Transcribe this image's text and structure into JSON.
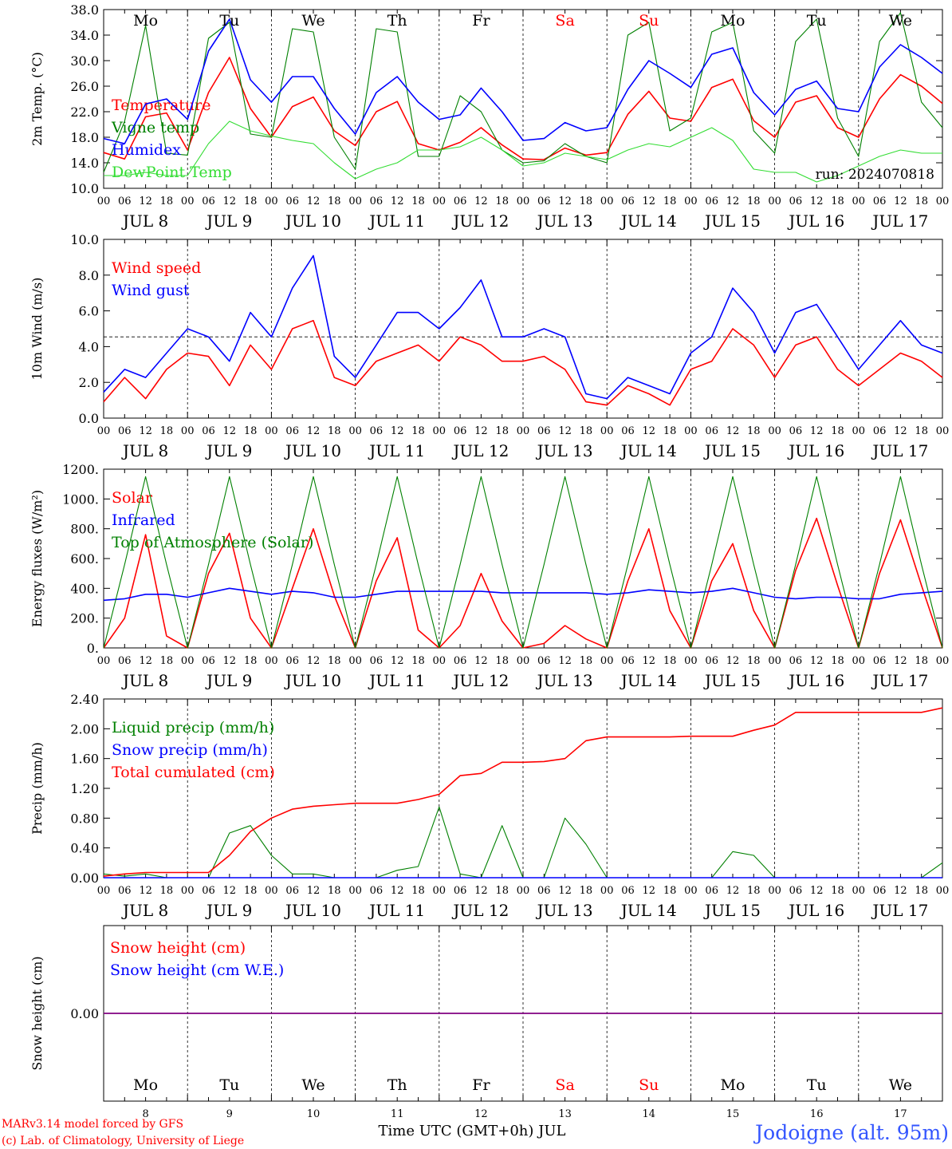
{
  "run_label": "run: 2024070818",
  "footer": {
    "credit_line1": "MARv3.14 model forced by GFS",
    "credit_line2": "(c) Lab. of Climatology, University of Liege",
    "xaxis_title": "Time UTC (GMT+0h) JUL",
    "location": "Jodoigne (alt. 95m)"
  },
  "days": [
    {
      "abbr": "Mo",
      "weekend": false,
      "date": "JUL  8",
      "num": "8"
    },
    {
      "abbr": "Tu",
      "weekend": false,
      "date": "JUL  9",
      "num": "9"
    },
    {
      "abbr": "We",
      "weekend": false,
      "date": "JUL 10",
      "num": "10"
    },
    {
      "abbr": "Th",
      "weekend": false,
      "date": "JUL 11",
      "num": "11"
    },
    {
      "abbr": "Fr",
      "weekend": false,
      "date": "JUL 12",
      "num": "12"
    },
    {
      "abbr": "Sa",
      "weekend": true,
      "date": "JUL 13",
      "num": "13"
    },
    {
      "abbr": "Su",
      "weekend": true,
      "date": "JUL 14",
      "num": "14"
    },
    {
      "abbr": "Mo",
      "weekend": false,
      "date": "JUL 15",
      "num": "15"
    },
    {
      "abbr": "Tu",
      "weekend": false,
      "date": "JUL 16",
      "num": "16"
    },
    {
      "abbr": "We",
      "weekend": false,
      "date": "JUL 17",
      "num": "17"
    }
  ],
  "hour_ticks": [
    "00",
    "06",
    "12",
    "18"
  ],
  "colors": {
    "red": "#ff0000",
    "green": "#008000",
    "light_green": "#33dd33",
    "blue": "#0000ff",
    "purple": "#800080",
    "location_blue": "#3355ff"
  },
  "chart_data": [
    {
      "type": "line",
      "title": "",
      "ylabel": "2m Temp. (°C)",
      "xlabel": "",
      "ylim": [
        10.0,
        38.0
      ],
      "yticks": [
        "10.0",
        "14.0",
        "18.0",
        "22.0",
        "26.0",
        "30.0",
        "34.0",
        "38.0"
      ],
      "x_unit": "hours from 00 UTC JUL 8",
      "x": [
        0,
        6,
        12,
        18,
        24,
        30,
        36,
        42,
        48,
        54,
        60,
        66,
        72,
        78,
        84,
        90,
        96,
        102,
        108,
        114,
        120,
        126,
        132,
        138,
        144,
        150,
        156,
        162,
        168,
        174,
        180,
        186,
        192,
        198,
        204,
        210,
        216,
        222,
        228,
        234,
        240
      ],
      "series": [
        {
          "name": "Temperature",
          "color": "red",
          "values": [
            15.6,
            14.6,
            21.2,
            21.8,
            16.0,
            25.0,
            30.5,
            22.5,
            18.0,
            22.8,
            24.3,
            19.0,
            16.7,
            22.0,
            23.6,
            17.0,
            16.0,
            17.2,
            19.5,
            16.8,
            14.6,
            14.5,
            16.3,
            15.2,
            15.6,
            21.6,
            25.2,
            21.0,
            20.5,
            25.8,
            27.1,
            20.6,
            18.0,
            23.5,
            24.5,
            19.5,
            18.0,
            24.0,
            27.8,
            26.0,
            23.3
          ]
        },
        {
          "name": "Vigne temp",
          "color": "green",
          "values": [
            12.5,
            20.5,
            35.5,
            15.5,
            15.2,
            33.5,
            36.0,
            18.5,
            18.0,
            35.0,
            34.5,
            18.0,
            13.0,
            35.0,
            34.5,
            15.0,
            15.0,
            24.5,
            22.0,
            16.0,
            14.0,
            14.3,
            17.0,
            15.0,
            14.0,
            34.0,
            36.0,
            19.0,
            21.0,
            34.5,
            36.0,
            19.0,
            15.5,
            33.0,
            36.5,
            21.0,
            15.0,
            33.0,
            37.5,
            23.5,
            19.5
          ]
        },
        {
          "name": "Humidex",
          "color": "blue",
          "values": [
            17.8,
            17.0,
            23.2,
            24.0,
            20.8,
            31.5,
            36.5,
            27.0,
            23.5,
            27.5,
            27.5,
            22.5,
            18.5,
            25.0,
            27.5,
            23.5,
            20.8,
            21.5,
            25.7,
            22.0,
            17.5,
            17.8,
            20.3,
            19.0,
            19.5,
            25.5,
            30.0,
            28.0,
            25.8,
            31.0,
            32.0,
            25.0,
            21.5,
            25.5,
            26.8,
            22.5,
            22.0,
            29.0,
            32.5,
            30.5,
            28.0
          ]
        },
        {
          "name": "DewPoint Temp",
          "color": "light_green",
          "values": [
            12.0,
            12.0,
            12.5,
            12.0,
            12.0,
            17.0,
            20.5,
            19.0,
            18.2,
            17.5,
            17.0,
            14.0,
            11.5,
            13.0,
            14.0,
            16.0,
            16.0,
            16.5,
            18.0,
            16.0,
            13.5,
            14.0,
            15.5,
            15.0,
            14.5,
            16.0,
            17.0,
            16.5,
            18.0,
            19.5,
            17.5,
            13.0,
            12.5,
            12.5,
            11.0,
            12.0,
            13.5,
            15.0,
            16.0,
            15.5,
            15.5
          ]
        }
      ]
    },
    {
      "type": "line",
      "title": "",
      "ylabel": "10m Wind (m/s)",
      "xlabel": "",
      "ylim": [
        0.0,
        11.0
      ],
      "yticks": [
        "0.0",
        "2.0",
        "4.0",
        "6.0",
        "8.0",
        "10.0"
      ],
      "reference_line": 5.0,
      "x_unit": "hours from 00 UTC JUL 8",
      "x": [
        0,
        6,
        12,
        18,
        24,
        30,
        36,
        42,
        48,
        54,
        60,
        66,
        72,
        78,
        84,
        90,
        96,
        102,
        108,
        114,
        120,
        126,
        132,
        138,
        144,
        150,
        156,
        162,
        168,
        174,
        180,
        186,
        192,
        198,
        204,
        210,
        216,
        222,
        228,
        234,
        240
      ],
      "series": [
        {
          "name": "Wind speed",
          "color": "red",
          "values": [
            1.0,
            2.5,
            1.2,
            3.0,
            4.0,
            3.8,
            2.0,
            4.5,
            3.0,
            5.5,
            6.0,
            2.5,
            2.0,
            3.5,
            4.0,
            4.5,
            3.5,
            5.0,
            4.5,
            3.5,
            3.5,
            3.8,
            3.0,
            1.0,
            0.8,
            2.0,
            1.5,
            0.8,
            3.0,
            3.5,
            5.5,
            4.5,
            2.5,
            4.5,
            5.0,
            3.0,
            2.0,
            3.0,
            4.0,
            3.5,
            2.5
          ]
        },
        {
          "name": "Wind gust",
          "color": "blue",
          "values": [
            1.6,
            3.0,
            2.5,
            4.0,
            5.5,
            5.0,
            3.5,
            6.5,
            5.0,
            8.0,
            10.0,
            3.8,
            2.5,
            4.5,
            6.5,
            6.5,
            5.5,
            6.8,
            8.5,
            5.0,
            5.0,
            5.5,
            5.0,
            1.5,
            1.2,
            2.5,
            2.0,
            1.5,
            4.0,
            5.0,
            8.0,
            6.5,
            4.0,
            6.5,
            7.0,
            5.0,
            3.0,
            4.5,
            6.0,
            4.5,
            4.0
          ]
        }
      ]
    },
    {
      "type": "line",
      "title": "",
      "ylabel": "Energy fluxes (W/m²)",
      "xlabel": "",
      "ylim": [
        0,
        1200
      ],
      "yticks": [
        "0.",
        "200.",
        "400.",
        "600.",
        "800.",
        "1000.",
        "1200."
      ],
      "x_unit": "hours from 00 UTC JUL 8",
      "x": [
        0,
        6,
        12,
        18,
        24,
        30,
        36,
        42,
        48,
        54,
        60,
        66,
        72,
        78,
        84,
        90,
        96,
        102,
        108,
        114,
        120,
        126,
        132,
        138,
        144,
        150,
        156,
        162,
        168,
        174,
        180,
        186,
        192,
        198,
        204,
        210,
        216,
        222,
        228,
        234,
        240
      ],
      "series": [
        {
          "name": "Solar",
          "color": "red",
          "values": [
            0,
            200,
            760,
            80,
            0,
            500,
            770,
            200,
            0,
            400,
            800,
            350,
            0,
            450,
            740,
            120,
            0,
            150,
            500,
            180,
            0,
            30,
            150,
            60,
            0,
            450,
            800,
            250,
            0,
            450,
            700,
            250,
            0,
            520,
            870,
            420,
            0,
            500,
            860,
            420,
            0
          ]
        },
        {
          "name": "Infrared",
          "color": "blue",
          "values": [
            320,
            330,
            360,
            360,
            340,
            370,
            400,
            380,
            360,
            380,
            370,
            340,
            340,
            360,
            380,
            380,
            380,
            380,
            380,
            370,
            370,
            370,
            370,
            370,
            360,
            370,
            390,
            380,
            370,
            380,
            400,
            370,
            340,
            330,
            340,
            340,
            330,
            330,
            360,
            370,
            380
          ]
        },
        {
          "name": "Top of Atmosphere (Solar)",
          "color": "green",
          "values": [
            0,
            560,
            1150,
            560,
            0,
            560,
            1150,
            560,
            0,
            560,
            1150,
            560,
            0,
            560,
            1150,
            560,
            0,
            560,
            1150,
            560,
            0,
            560,
            1150,
            560,
            0,
            560,
            1150,
            560,
            0,
            560,
            1150,
            560,
            0,
            560,
            1150,
            560,
            0,
            560,
            1150,
            560,
            0
          ]
        }
      ]
    },
    {
      "type": "line",
      "title": "",
      "ylabel": "Precip (mm/h)",
      "xlabel": "",
      "ylim": [
        0.0,
        2.4
      ],
      "yticks": [
        "0.00",
        "0.40",
        "0.80",
        "1.20",
        "1.60",
        "2.00",
        "2.40"
      ],
      "x_unit": "hours from 00 UTC JUL 8",
      "x": [
        0,
        6,
        12,
        18,
        24,
        30,
        36,
        42,
        48,
        54,
        60,
        66,
        72,
        78,
        84,
        90,
        96,
        102,
        108,
        114,
        120,
        126,
        132,
        138,
        144,
        150,
        156,
        162,
        168,
        174,
        180,
        186,
        192,
        198,
        204,
        210,
        216,
        222,
        228,
        234,
        240
      ],
      "series": [
        {
          "name": "Liquid precip (mm/h)",
          "color": "green",
          "values": [
            0.05,
            0.02,
            0.05,
            0.0,
            0.0,
            0.0,
            0.6,
            0.7,
            0.3,
            0.05,
            0.05,
            0.0,
            0.0,
            0.0,
            0.1,
            0.15,
            0.95,
            0.05,
            0.0,
            0.7,
            0.0,
            0.0,
            0.8,
            0.45,
            0.0,
            0.0,
            0.0,
            0.0,
            0.0,
            0.0,
            0.35,
            0.3,
            0.0,
            0.0,
            0.0,
            0.0,
            0.0,
            0.0,
            0.0,
            0.0,
            0.2
          ]
        },
        {
          "name": "Snow precip (mm/h)",
          "color": "blue",
          "values": [
            0,
            0,
            0,
            0,
            0,
            0,
            0,
            0,
            0,
            0,
            0,
            0,
            0,
            0,
            0,
            0,
            0,
            0,
            0,
            0,
            0,
            0,
            0,
            0,
            0,
            0,
            0,
            0,
            0,
            0,
            0,
            0,
            0,
            0,
            0,
            0,
            0,
            0,
            0,
            0,
            0
          ]
        },
        {
          "name": "Total cumulated (cm)",
          "color": "red",
          "values": [
            0.02,
            0.05,
            0.07,
            0.07,
            0.07,
            0.07,
            0.3,
            0.62,
            0.8,
            0.92,
            0.96,
            0.98,
            1.0,
            1.0,
            1.0,
            1.05,
            1.12,
            1.37,
            1.4,
            1.55,
            1.55,
            1.56,
            1.6,
            1.84,
            1.89,
            1.89,
            1.89,
            1.89,
            1.9,
            1.9,
            1.9,
            1.98,
            2.05,
            2.22,
            2.22,
            2.22,
            2.22,
            2.22,
            2.22,
            2.22,
            2.28
          ]
        }
      ]
    },
    {
      "type": "line",
      "title": "",
      "ylabel": "Snow height (cm)",
      "xlabel": "",
      "ylim": [
        -1.0,
        1.0
      ],
      "yticks": [
        "0.00"
      ],
      "x_unit": "hours from 00 UTC JUL 8",
      "x": [
        0,
        240
      ],
      "series": [
        {
          "name": "Snow height (cm)",
          "color": "red",
          "values": [
            0.0,
            0.0
          ]
        },
        {
          "name": "Snow height (cm W.E.)",
          "color": "blue",
          "values": [
            0.0,
            0.0
          ]
        }
      ]
    }
  ]
}
